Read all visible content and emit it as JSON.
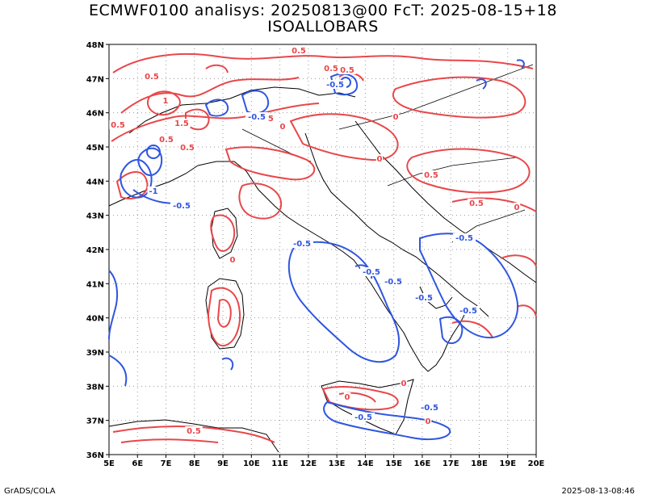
{
  "title_line1": "ECMWF0100 analisys: 20250813@00 FcT: 2025-08-15+18",
  "title_line2": "ISOALLOBARS",
  "footer_left": "GrADS/COLA",
  "footer_right": "2025-08-13-08:46",
  "colors": {
    "positive": "#e8474a",
    "negative": "#2f56e0",
    "coast": "#000000",
    "grid": "#9a9a9a"
  },
  "axes": {
    "lon_labels": [
      "5E",
      "6E",
      "7E",
      "8E",
      "9E",
      "10E",
      "11E",
      "12E",
      "13E",
      "14E",
      "15E",
      "16E",
      "17E",
      "18E",
      "19E",
      "20E"
    ],
    "lat_labels": [
      "36N",
      "37N",
      "38N",
      "39N",
      "40N",
      "41N",
      "42N",
      "43N",
      "44N",
      "45N",
      "46N",
      "47N",
      "48N"
    ]
  },
  "contour_labels": {
    "positive": [
      "0.5",
      "0.5",
      "1",
      "0.5",
      "0.5",
      "1.5",
      "0.5",
      "0",
      "0.5",
      "0.5",
      "0.5",
      "0",
      "0.5",
      "0",
      "0.5",
      "0",
      "0",
      "0",
      "0",
      "0",
      "0.5"
    ],
    "negative": [
      "-0.5",
      "-1",
      "-0.5",
      "-0.5",
      "-0.5",
      "-0.5",
      "-0.5",
      "-0.5",
      "-0.5",
      "-0.5",
      "-0.5",
      "-0.5"
    ]
  }
}
